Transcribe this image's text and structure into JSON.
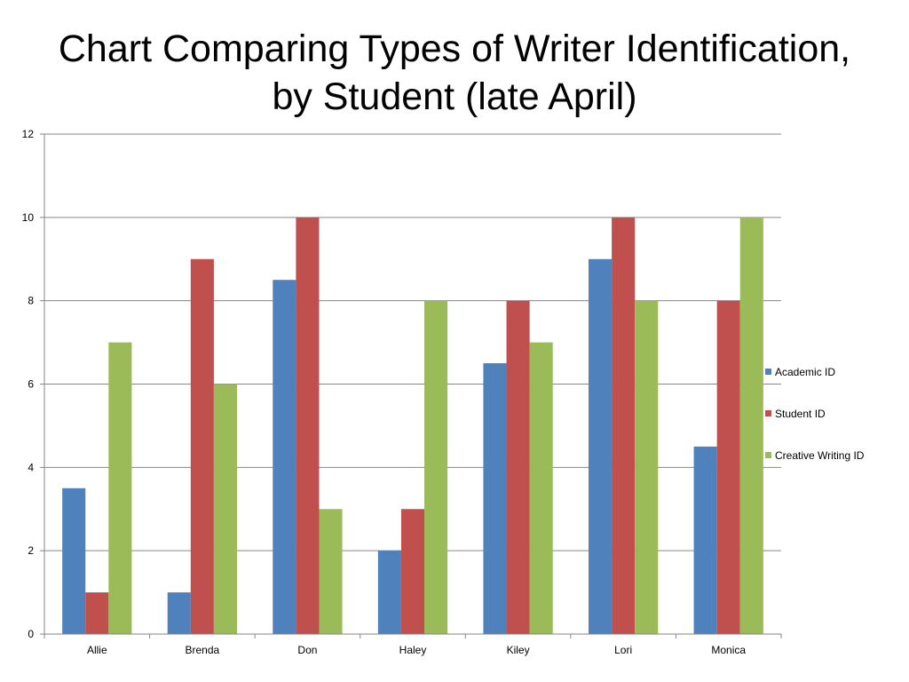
{
  "chart_data": {
    "type": "bar",
    "title": "Chart Comparing Types of Writer Identification, by Student (late April)",
    "xlabel": "",
    "ylabel": "",
    "categories": [
      "Allie",
      "Brenda",
      "Don",
      "Haley",
      "Kiley",
      "Lori",
      "Monica"
    ],
    "series": [
      {
        "name": "Academic ID",
        "color": "#4F81BD",
        "values": [
          3.5,
          1,
          8.5,
          2,
          6.5,
          9,
          4.5
        ]
      },
      {
        "name": "Student ID",
        "color": "#C0504D",
        "values": [
          1,
          9,
          10,
          3,
          8,
          10,
          8
        ]
      },
      {
        "name": "Creative Writing ID",
        "color": "#9BBB59",
        "values": [
          7,
          6,
          3,
          8,
          7,
          8,
          10
        ]
      }
    ],
    "ylim": [
      0,
      12
    ],
    "yticks": [
      0,
      2,
      4,
      6,
      8,
      10,
      12
    ],
    "grid": true,
    "legend_position": "right"
  }
}
